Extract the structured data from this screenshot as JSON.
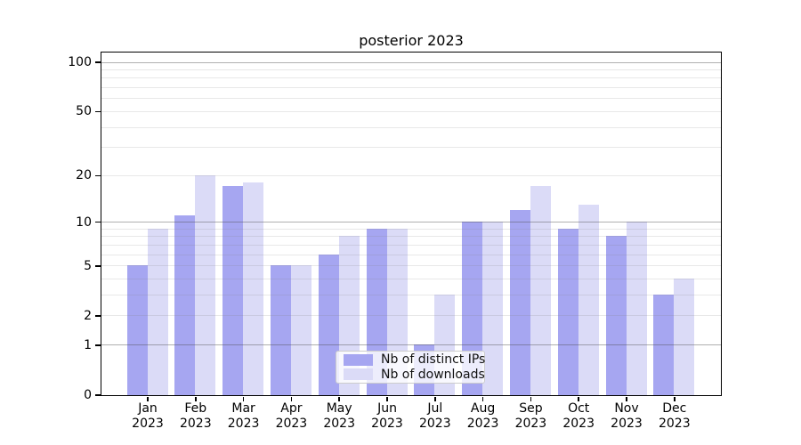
{
  "chart_data": {
    "type": "bar",
    "title": "posterior 2023",
    "xlabel": "",
    "ylabel": "",
    "categories": [
      "Jan",
      "Feb",
      "Mar",
      "Apr",
      "May",
      "Jun",
      "Jul",
      "Aug",
      "Sep",
      "Oct",
      "Nov",
      "Dec"
    ],
    "year_label": "2023",
    "series": [
      {
        "name": "Nb of distinct IPs",
        "color": "#a6a6f1",
        "values": [
          5,
          11,
          17,
          5,
          6,
          9,
          1,
          10,
          12,
          9,
          8,
          3
        ]
      },
      {
        "name": "Nb of downloads",
        "color": "#dbdbf7",
        "values": [
          9,
          20,
          18,
          5,
          8,
          9,
          3,
          10,
          17,
          13,
          10,
          4
        ]
      }
    ],
    "y_scale": "log1p",
    "ylim": [
      0,
      115
    ],
    "y_tick_values": [
      100,
      50,
      20,
      10,
      5,
      2,
      1,
      0
    ],
    "y_major_gridlines": [
      1,
      10,
      100
    ],
    "y_minor_gridlines": [
      2,
      3,
      4,
      5,
      6,
      7,
      8,
      9,
      20,
      30,
      40,
      50,
      60,
      70,
      80,
      90
    ],
    "grid": "on",
    "grid_above_bars": true,
    "legend_position": "lower center",
    "background_color": "#ffffff",
    "spine_color": "#000000"
  }
}
